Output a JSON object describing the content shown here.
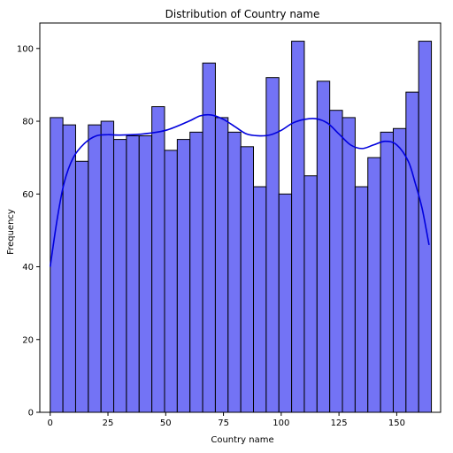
{
  "chart_data": {
    "type": "bar",
    "title": "Distribution of Country name",
    "xlabel": "Country name",
    "ylabel": "Frequency",
    "xlim": [
      -4.5,
      169
    ],
    "ylim": [
      0,
      107
    ],
    "xticks": [
      0,
      25,
      50,
      75,
      100,
      125,
      150
    ],
    "yticks": [
      0,
      20,
      40,
      60,
      80,
      100
    ],
    "bin_edges": [
      0,
      5.5,
      11,
      16.5,
      22,
      27.5,
      33,
      38.5,
      44,
      49.5,
      55,
      60.5,
      66,
      71.5,
      77,
      82.5,
      88,
      93.5,
      99,
      104.5,
      110,
      115.5,
      121,
      126.5,
      132,
      137.5,
      143,
      148.5,
      154,
      159.5,
      165
    ],
    "values": [
      81,
      79,
      69,
      79,
      80,
      75,
      76,
      76,
      84,
      72,
      75,
      77,
      96,
      81,
      77,
      73,
      62,
      92,
      60,
      102,
      65,
      91,
      83,
      81,
      62,
      70,
      77,
      78,
      88,
      102
    ],
    "kde": {
      "x": [
        0,
        3,
        6,
        10,
        15,
        20,
        25,
        30,
        40,
        50,
        60,
        65,
        70,
        75,
        80,
        85,
        90,
        95,
        100,
        105,
        110,
        115,
        120,
        125,
        130,
        135,
        140,
        145,
        150,
        155,
        158,
        161,
        164
      ],
      "y": [
        40,
        53,
        63,
        70,
        74,
        76,
        76.3,
        76.2,
        76.5,
        77.5,
        80,
        81.5,
        81.7,
        80.5,
        78.5,
        76.5,
        76,
        76.2,
        77.5,
        79.5,
        80.5,
        80.7,
        79.5,
        76.5,
        73.5,
        72.5,
        73.5,
        74.5,
        73.5,
        69,
        63,
        56,
        46
      ]
    },
    "bar_color": "#7373f5",
    "line_color": "#0000dd",
    "grid": false
  }
}
